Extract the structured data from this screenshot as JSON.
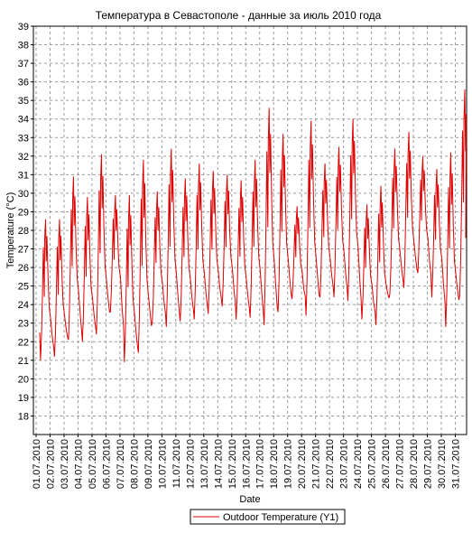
{
  "chart_data": {
    "type": "line",
    "title": "Температура в Севастополе - данные за июль 2010 года",
    "xlabel": "Date",
    "ylabel": "Temperature (°C)",
    "ylim": [
      17,
      39
    ],
    "yticks": [
      18,
      19,
      20,
      21,
      22,
      23,
      24,
      25,
      26,
      27,
      28,
      29,
      30,
      31,
      32,
      33,
      34,
      35,
      36,
      37,
      38,
      39
    ],
    "xticks": [
      "01.07.2010",
      "02.07.2010",
      "03.07.2010",
      "04.07.2010",
      "05.07.2010",
      "06.07.2010",
      "07.07.2010",
      "08.07.2010",
      "09.07.2010",
      "10.07.2010",
      "11.07.2010",
      "12.07.2010",
      "13.07.2010",
      "14.07.2010",
      "15.07.2010",
      "16.07.2010",
      "17.07.2010",
      "18.07.2010",
      "19.07.2010",
      "20.07.2010",
      "21.07.2010",
      "22.07.2010",
      "23.07.2010",
      "24.07.2010",
      "25.07.2010",
      "26.07.2010",
      "27.07.2010",
      "28.07.2010",
      "29.07.2010",
      "30.07.2010",
      "31.07.2010"
    ],
    "grid": true,
    "legend_position": "bottom-center",
    "series": [
      {
        "name": "Outdoor Temperature (Y1)",
        "color": "#dd0000",
        "daily_min": [
          21.0,
          21.2,
          22.1,
          22.0,
          22.4,
          23.6,
          20.9,
          21.4,
          23.1,
          22.8,
          23.1,
          23.2,
          23.5,
          23.9,
          23.2,
          23.3,
          22.9,
          23.6,
          24.3,
          23.4,
          24.4,
          24.4,
          24.2,
          23.2,
          22.9,
          24.6,
          24.9,
          25.7,
          24.4,
          22.8,
          24.5
        ],
        "daily_max": [
          28.6,
          28.6,
          30.9,
          29.8,
          32.1,
          29.9,
          29.9,
          31.8,
          30.1,
          32.4,
          30.8,
          31.6,
          31.2,
          31.0,
          30.7,
          31.8,
          34.6,
          33.2,
          29.3,
          33.9,
          31.6,
          32.5,
          34.0,
          29.4,
          30.4,
          32.4,
          33.3,
          32.0,
          31.3,
          32.2,
          35.6
        ]
      }
    ]
  }
}
